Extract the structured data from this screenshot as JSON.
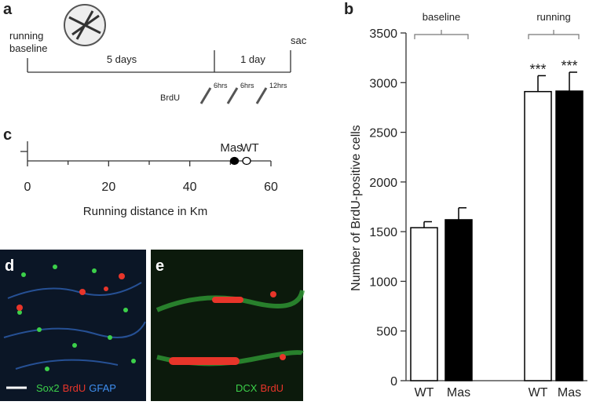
{
  "panel_labels": [
    "a",
    "b",
    "c",
    "d",
    "e"
  ],
  "timeline": {
    "start_label": [
      "running",
      "baseline"
    ],
    "phase1": "5 days",
    "phase2": "1 day",
    "end_label": "sac",
    "injection_label": "BrdU",
    "injections": [
      "6hrs",
      "6hrs",
      "12hrs"
    ]
  },
  "chart_data": [
    {
      "type": "bar",
      "ylabel": "Number of BrdU-positive cells",
      "categories": [
        "WT",
        "Mas",
        "WT",
        "Mas"
      ],
      "values": [
        1540,
        1620,
        2910,
        2915
      ],
      "errors": [
        60,
        120,
        160,
        190
      ],
      "colors": [
        "#ffffff",
        "#000000",
        "#ffffff",
        "#000000"
      ],
      "significance": [
        null,
        null,
        "***",
        "***"
      ],
      "groups": [
        "baseline",
        "running"
      ],
      "ylim": [
        0,
        3500
      ],
      "yticks": [
        0,
        500,
        1000,
        1500,
        2000,
        2500,
        3000,
        3500
      ]
    },
    {
      "type": "dot",
      "xlabel": "Running distance in Km",
      "xlim": [
        0,
        60
      ],
      "xticks": [
        0,
        20,
        40,
        60
      ],
      "xminor": [
        10,
        30,
        50
      ],
      "series": [
        {
          "name": "Mas",
          "color": "#000000",
          "values": [
            51
          ]
        },
        {
          "name": "WT",
          "color": "#ffffff",
          "values": [
            54
          ]
        }
      ]
    }
  ],
  "micrographs": {
    "d": [
      {
        "text": "Sox2",
        "color": "#3cd04a"
      },
      {
        "text": "BrdU",
        "color": "#e8352a"
      },
      {
        "text": "GFAP",
        "color": "#3f8ff0"
      }
    ],
    "e": [
      {
        "text": "DCX",
        "color": "#3cd04a"
      },
      {
        "text": "BrdU",
        "color": "#e8352a"
      }
    ]
  }
}
